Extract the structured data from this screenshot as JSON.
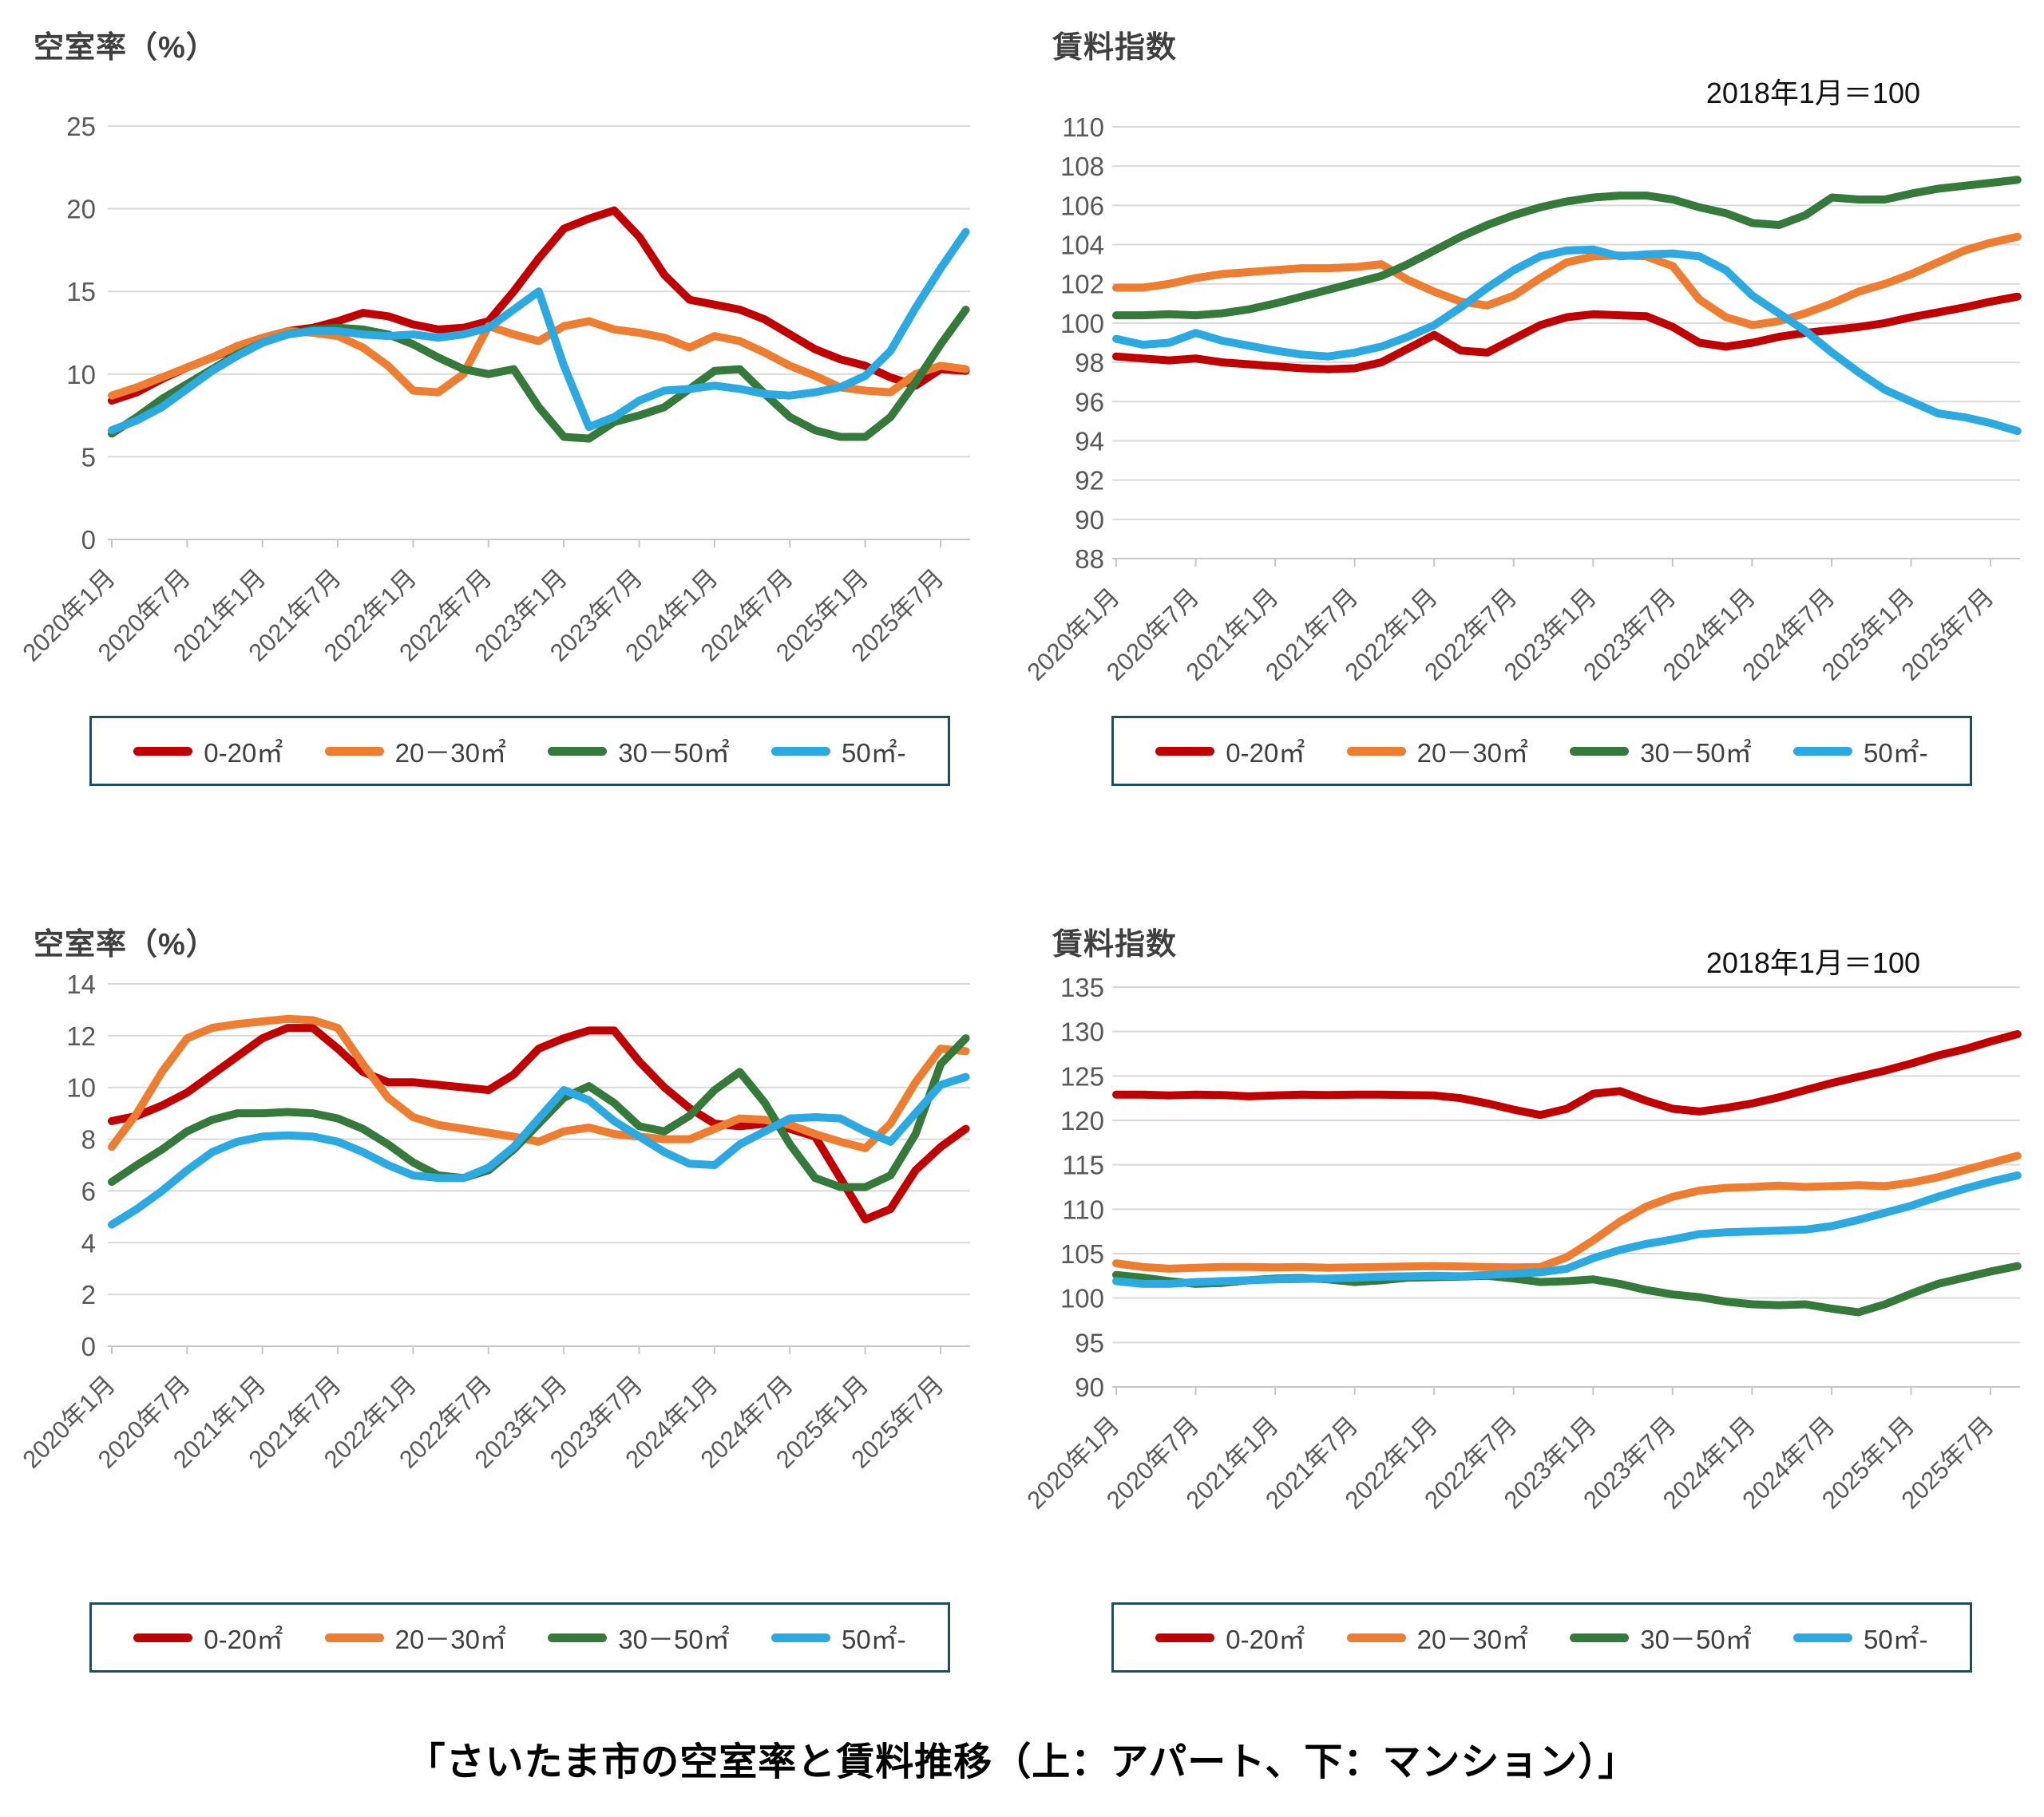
{
  "page": {
    "caption": "「さいたま市の空室率と賃料推移（上：アパート、下：マンション）」",
    "background": "#ffffff"
  },
  "colors": {
    "grid": "#d9d9d9",
    "axis_line": "#c6c6c6",
    "axis_text": "#595959",
    "title_text": "#3f3f3f",
    "legend_border": "#1f4e5c"
  },
  "x_tick_labels": [
    "2020年1月",
    "2020年7月",
    "2021年1月",
    "2021年7月",
    "2022年1月",
    "2022年7月",
    "2023年1月",
    "2023年7月",
    "2024年1月",
    "2024年7月",
    "2025年1月",
    "2025年7月"
  ],
  "categories": [
    "2020-01",
    "2020-03",
    "2020-05",
    "2020-07",
    "2020-09",
    "2020-11",
    "2021-01",
    "2021-03",
    "2021-05",
    "2021-07",
    "2021-09",
    "2021-11",
    "2022-01",
    "2022-03",
    "2022-05",
    "2022-07",
    "2022-09",
    "2022-11",
    "2023-01",
    "2023-03",
    "2023-05",
    "2023-07",
    "2023-09",
    "2023-11",
    "2024-01",
    "2024-03",
    "2024-05",
    "2024-07",
    "2024-09",
    "2024-11",
    "2025-01",
    "2025-03",
    "2025-05",
    "2025-07",
    "2025-09"
  ],
  "series_labels": [
    "0-20㎡",
    "20－30㎡",
    "30－50㎡",
    "50㎡-"
  ],
  "chart_data": [
    {
      "id": "apartment-vacancy",
      "type": "line",
      "title": "空室率（%）",
      "ylim": [
        0,
        25
      ],
      "ystep": 5,
      "legend_position": "bottom",
      "grid": true,
      "series": [
        {
          "name": "0-20㎡",
          "color": "#c00000",
          "values": [
            8.4,
            8.9,
            9.7,
            10.4,
            11.0,
            11.6,
            12.1,
            12.6,
            12.8,
            13.2,
            13.7,
            13.5,
            13.0,
            12.7,
            12.8,
            13.2,
            15.0,
            17.0,
            18.8,
            19.4,
            19.9,
            18.3,
            16.0,
            14.5,
            14.2,
            13.9,
            13.3,
            12.4,
            11.5,
            10.9,
            10.5,
            9.8,
            9.3,
            10.3,
            10.2
          ]
        },
        {
          "name": "20－30㎡",
          "color": "#ed7d31",
          "values": [
            8.7,
            9.2,
            9.8,
            10.4,
            11.0,
            11.7,
            12.2,
            12.6,
            12.5,
            12.3,
            11.6,
            10.5,
            9.0,
            8.9,
            10.0,
            12.9,
            12.4,
            12.0,
            12.9,
            13.2,
            12.7,
            12.5,
            12.2,
            11.6,
            12.3,
            12.0,
            11.3,
            10.5,
            9.9,
            9.2,
            9.0,
            8.9,
            10.0,
            10.5,
            10.3
          ]
        },
        {
          "name": "30－50㎡",
          "color": "#35793b",
          "values": [
            6.4,
            7.4,
            8.5,
            9.4,
            10.3,
            11.2,
            11.9,
            12.4,
            12.7,
            12.8,
            12.7,
            12.4,
            11.8,
            11.0,
            10.3,
            10.0,
            10.3,
            8.0,
            6.2,
            6.1,
            7.1,
            7.5,
            8.0,
            9.1,
            10.2,
            10.3,
            8.8,
            7.4,
            6.6,
            6.2,
            6.2,
            7.4,
            9.5,
            11.8,
            13.9
          ]
        },
        {
          "name": "50㎡-",
          "color": "#2da9e1",
          "values": [
            6.6,
            7.2,
            8.0,
            9.1,
            10.2,
            11.1,
            11.9,
            12.4,
            12.6,
            12.6,
            12.4,
            12.3,
            12.4,
            12.2,
            12.4,
            12.8,
            13.9,
            15.0,
            10.5,
            6.8,
            7.4,
            8.4,
            9.0,
            9.1,
            9.3,
            9.1,
            8.8,
            8.7,
            8.9,
            9.2,
            9.9,
            11.4,
            14.0,
            16.4,
            18.6
          ]
        }
      ]
    },
    {
      "id": "apartment-rent-index",
      "type": "line",
      "title": "賃料指数",
      "note": "2018年1月＝100",
      "ylim": [
        88,
        110
      ],
      "ystep": 2,
      "legend_position": "bottom",
      "grid": true,
      "series": [
        {
          "name": "0-20㎡",
          "color": "#c00000",
          "values": [
            98.3,
            98.2,
            98.1,
            98.2,
            98.0,
            97.9,
            97.8,
            97.7,
            97.65,
            97.7,
            98.0,
            98.7,
            99.4,
            98.6,
            98.5,
            99.2,
            99.9,
            100.3,
            100.45,
            100.4,
            100.35,
            99.8,
            99.0,
            98.8,
            99.0,
            99.3,
            99.5,
            99.65,
            99.8,
            100.0,
            100.3,
            100.55,
            100.8,
            101.1,
            101.35
          ]
        },
        {
          "name": "20－30㎡",
          "color": "#ed7d31",
          "values": [
            101.8,
            101.8,
            102.0,
            102.3,
            102.5,
            102.6,
            102.7,
            102.8,
            102.8,
            102.85,
            103.0,
            102.2,
            101.6,
            101.1,
            100.9,
            101.4,
            102.3,
            103.1,
            103.4,
            103.45,
            103.4,
            102.9,
            101.2,
            100.3,
            99.9,
            100.1,
            100.5,
            101.0,
            101.6,
            102.0,
            102.5,
            103.1,
            103.7,
            104.1,
            104.4
          ]
        },
        {
          "name": "30－50㎡",
          "color": "#35793b",
          "values": [
            100.4,
            100.4,
            100.45,
            100.4,
            100.5,
            100.7,
            101.0,
            101.35,
            101.7,
            102.05,
            102.4,
            103.0,
            103.7,
            104.4,
            105.0,
            105.5,
            105.9,
            106.2,
            106.4,
            106.5,
            106.5,
            106.3,
            105.9,
            105.6,
            105.1,
            105.0,
            105.5,
            106.4,
            106.3,
            106.3,
            106.6,
            106.85,
            107.0,
            107.15,
            107.3
          ]
        },
        {
          "name": "50㎡-",
          "color": "#2da9e1",
          "values": [
            99.2,
            98.9,
            99.0,
            99.5,
            99.1,
            98.85,
            98.6,
            98.4,
            98.3,
            98.5,
            98.8,
            99.3,
            99.9,
            100.8,
            101.8,
            102.7,
            103.4,
            103.7,
            103.75,
            103.4,
            103.5,
            103.55,
            103.4,
            102.7,
            101.4,
            100.5,
            99.6,
            98.5,
            97.5,
            96.6,
            96.0,
            95.4,
            95.2,
            94.9,
            94.5
          ]
        }
      ]
    },
    {
      "id": "mansion-vacancy",
      "type": "line",
      "title": "空室率（%）",
      "ylim": [
        0,
        14
      ],
      "ystep": 2,
      "legend_position": "bottom",
      "grid": true,
      "series": [
        {
          "name": "0-20㎡",
          "color": "#c00000",
          "values": [
            8.7,
            8.9,
            9.3,
            9.8,
            10.5,
            11.2,
            11.9,
            12.3,
            12.3,
            11.5,
            10.6,
            10.2,
            10.2,
            10.1,
            10.0,
            9.9,
            10.5,
            11.5,
            11.9,
            12.2,
            12.2,
            11.0,
            10.0,
            9.2,
            8.6,
            8.5,
            8.6,
            8.4,
            8.1,
            6.5,
            4.9,
            5.3,
            6.8,
            7.7,
            8.4
          ]
        },
        {
          "name": "20－30㎡",
          "color": "#ed7d31",
          "values": [
            7.7,
            9.0,
            10.6,
            11.9,
            12.3,
            12.45,
            12.55,
            12.65,
            12.6,
            12.3,
            10.9,
            9.6,
            8.85,
            8.55,
            8.4,
            8.25,
            8.1,
            7.9,
            8.3,
            8.45,
            8.2,
            8.1,
            8.0,
            8.0,
            8.4,
            8.8,
            8.75,
            8.55,
            8.2,
            7.9,
            7.65,
            8.6,
            10.2,
            11.5,
            11.4
          ]
        },
        {
          "name": "30－50㎡",
          "color": "#35793b",
          "values": [
            6.35,
            7.0,
            7.6,
            8.3,
            8.75,
            9.0,
            9.0,
            9.05,
            9.0,
            8.8,
            8.4,
            7.8,
            7.1,
            6.6,
            6.5,
            6.8,
            7.6,
            8.6,
            9.6,
            10.05,
            9.4,
            8.5,
            8.3,
            8.9,
            9.9,
            10.6,
            9.4,
            7.8,
            6.5,
            6.15,
            6.15,
            6.6,
            8.2,
            10.9,
            11.9
          ]
        },
        {
          "name": "50㎡-",
          "color": "#2da9e1",
          "values": [
            4.7,
            5.3,
            6.0,
            6.8,
            7.5,
            7.9,
            8.1,
            8.15,
            8.1,
            7.9,
            7.5,
            7.0,
            6.6,
            6.5,
            6.5,
            6.9,
            7.7,
            8.8,
            9.9,
            9.5,
            8.7,
            8.1,
            7.5,
            7.05,
            7.0,
            7.8,
            8.3,
            8.8,
            8.85,
            8.8,
            8.3,
            7.9,
            9.0,
            10.1,
            10.4
          ]
        }
      ]
    },
    {
      "id": "mansion-rent-index",
      "type": "line",
      "title": "賃料指数",
      "note": "2018年1月＝100",
      "ylim": [
        90,
        135
      ],
      "ystep": 5,
      "legend_position": "bottom",
      "grid": true,
      "series": [
        {
          "name": "0-20㎡",
          "color": "#c00000",
          "values": [
            122.9,
            122.9,
            122.8,
            122.9,
            122.85,
            122.7,
            122.8,
            122.9,
            122.85,
            122.9,
            122.9,
            122.85,
            122.8,
            122.5,
            121.9,
            121.2,
            120.6,
            121.3,
            123.0,
            123.3,
            122.2,
            121.3,
            121.0,
            121.4,
            121.9,
            122.6,
            123.4,
            124.2,
            124.9,
            125.6,
            126.4,
            127.3,
            128.0,
            128.9,
            129.7
          ]
        },
        {
          "name": "20－30㎡",
          "color": "#ed7d31",
          "values": [
            103.9,
            103.5,
            103.3,
            103.4,
            103.5,
            103.5,
            103.45,
            103.5,
            103.4,
            103.45,
            103.5,
            103.55,
            103.6,
            103.55,
            103.5,
            103.45,
            103.5,
            104.6,
            106.5,
            108.6,
            110.3,
            111.4,
            112.1,
            112.4,
            112.5,
            112.65,
            112.5,
            112.6,
            112.7,
            112.6,
            113.0,
            113.6,
            114.4,
            115.2,
            116.0
          ]
        },
        {
          "name": "30－50㎡",
          "color": "#35793b",
          "values": [
            102.6,
            102.3,
            101.9,
            101.6,
            101.7,
            102.0,
            102.2,
            102.25,
            102.1,
            101.8,
            102.0,
            102.3,
            102.35,
            102.4,
            102.5,
            102.2,
            101.8,
            101.9,
            102.1,
            101.6,
            100.9,
            100.4,
            100.1,
            99.6,
            99.3,
            99.2,
            99.3,
            98.8,
            98.4,
            99.3,
            100.5,
            101.6,
            102.3,
            103.0,
            103.6
          ]
        },
        {
          "name": "50㎡-",
          "color": "#2da9e1",
          "values": [
            101.9,
            101.6,
            101.6,
            101.8,
            101.9,
            102.0,
            102.1,
            102.15,
            102.2,
            102.3,
            102.4,
            102.45,
            102.5,
            102.45,
            102.6,
            102.75,
            102.9,
            103.3,
            104.5,
            105.4,
            106.1,
            106.6,
            107.2,
            107.4,
            107.5,
            107.6,
            107.7,
            108.1,
            108.8,
            109.6,
            110.4,
            111.4,
            112.3,
            113.1,
            113.8
          ]
        }
      ]
    }
  ]
}
